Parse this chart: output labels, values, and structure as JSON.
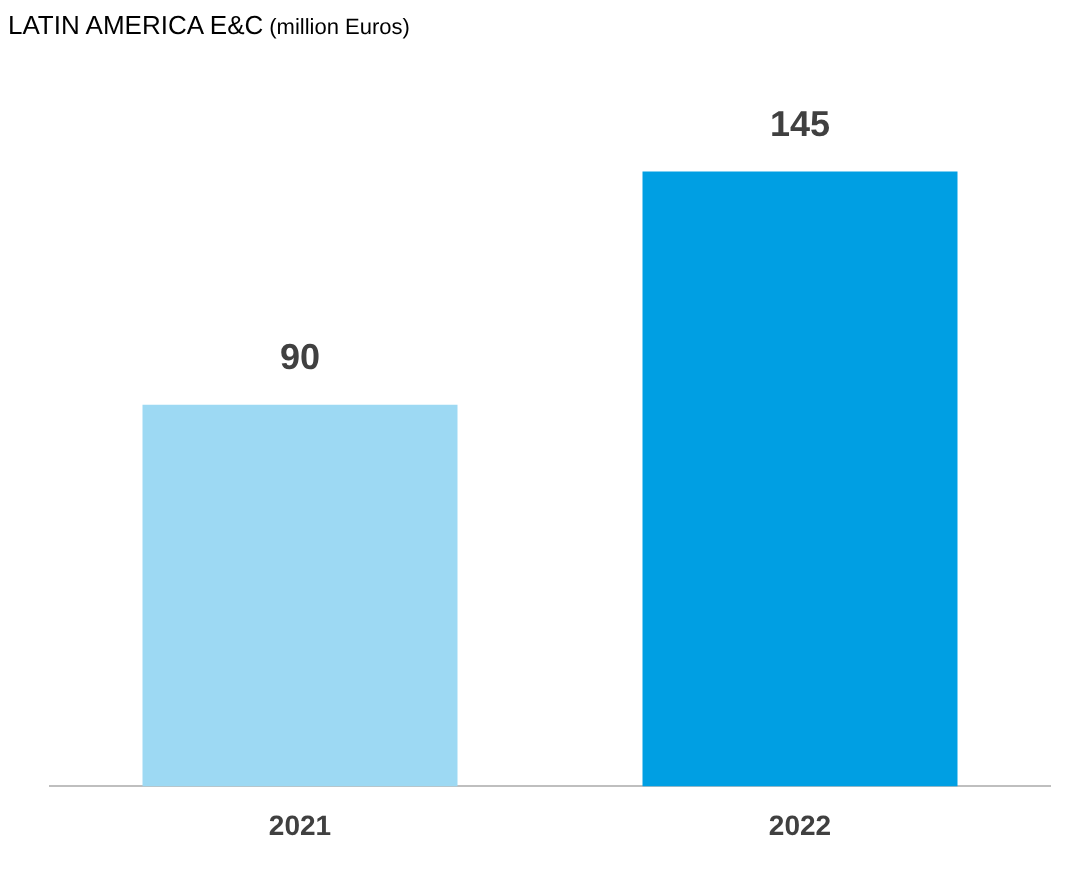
{
  "chart_data": {
    "type": "bar",
    "title": "LATIN AMERICA E&C",
    "subtitle": "(million Euros)",
    "categories": [
      "2021",
      "2022"
    ],
    "values": [
      90,
      145
    ],
    "colors": [
      "#9dd9f3",
      "#009fe3"
    ],
    "data_labels": true,
    "grid": false,
    "legend": false
  }
}
